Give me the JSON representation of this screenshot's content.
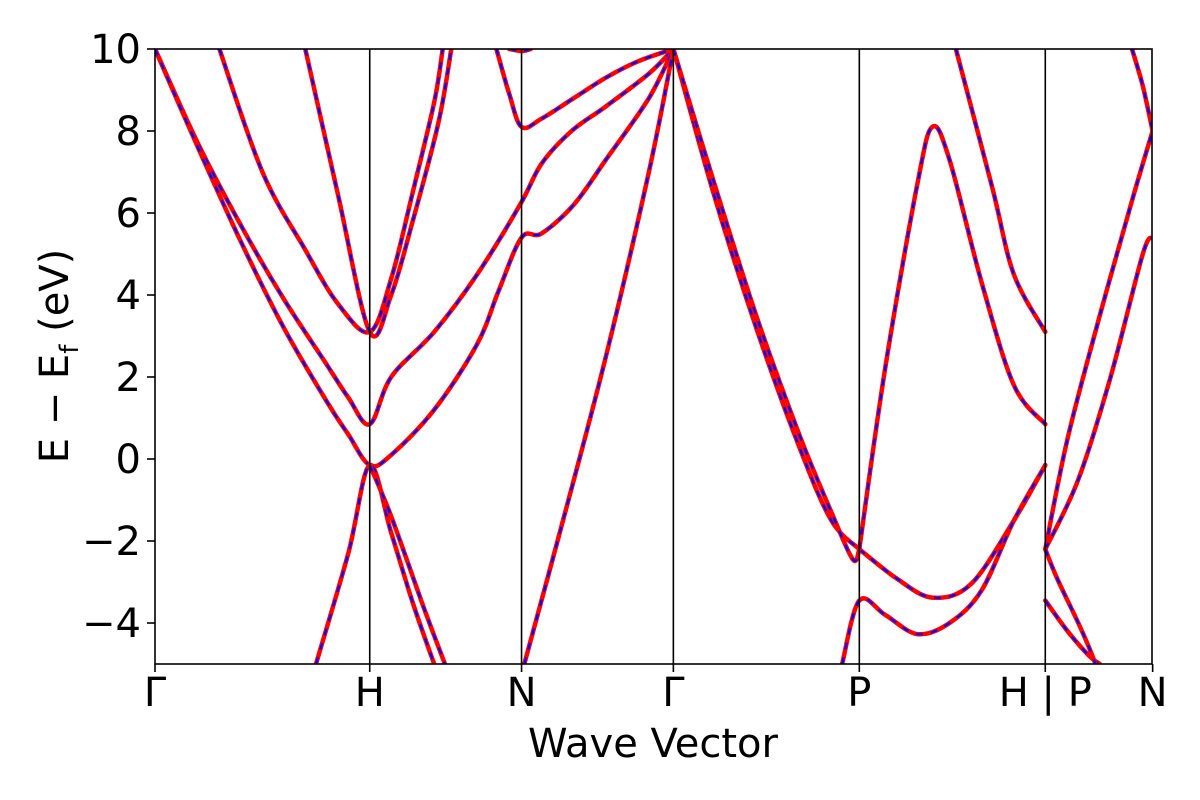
{
  "chart_data": {
    "type": "line",
    "title": "",
    "xlabel": "Wave Vector",
    "ylabel_main": "E − E",
    "ylabel_sub": "f",
    "ylabel_unit": " (eV)",
    "xlim": [
      0,
      4.643
    ],
    "ylim": [
      -5,
      10
    ],
    "yticks": [
      10,
      8,
      6,
      4,
      2,
      0,
      -2,
      -4
    ],
    "ytick_labels": [
      "10",
      "8",
      "6",
      "4",
      "2",
      "0",
      "−2",
      "−4"
    ],
    "kpoints": [
      {
        "label": "Γ",
        "x": 0.0
      },
      {
        "label": "H",
        "x": 1.0
      },
      {
        "label": "N",
        "x": 1.707
      },
      {
        "label": "Γ",
        "x": 2.414
      },
      {
        "label": "P",
        "x": 3.28
      },
      {
        "label": "H | P",
        "x": 4.146
      },
      {
        "label": "N",
        "x": 4.646
      }
    ],
    "style": {
      "series1_color": "#ff0000",
      "series2_color": "#0000ff",
      "series2_dashed": true,
      "grid": false,
      "legend": "none"
    },
    "bands": [
      {
        "name": "",
        "points": [
          [
            0,
            10
          ],
          [
            0.2,
            7.7
          ],
          [
            0.4,
            5.7
          ],
          [
            0.6,
            3.9
          ],
          [
            0.8,
            2.3
          ],
          [
            0.9,
            1.5
          ],
          [
            1.0,
            0.85
          ],
          [
            1.1,
            2.0
          ],
          [
            1.3,
            3.1
          ],
          [
            1.5,
            4.5
          ],
          [
            1.7,
            6.2
          ],
          [
            1.8,
            7.2
          ],
          [
            1.94,
            8.0
          ],
          [
            2.1,
            8.6
          ],
          [
            2.3,
            9.4
          ],
          [
            2.414,
            10
          ]
        ]
      },
      {
        "name": "",
        "points": [
          [
            0,
            10
          ],
          [
            0.2,
            7.6
          ],
          [
            0.4,
            5.3
          ],
          [
            0.6,
            3.2
          ],
          [
            0.8,
            1.4
          ],
          [
            0.9,
            0.6
          ],
          [
            1.0,
            -0.15
          ],
          [
            1.1,
            0.1
          ],
          [
            1.3,
            1.2
          ],
          [
            1.5,
            2.8
          ],
          [
            1.6,
            4.1
          ],
          [
            1.707,
            5.4
          ],
          [
            1.8,
            5.5
          ],
          [
            1.95,
            6.2
          ],
          [
            2.1,
            7.3
          ],
          [
            2.3,
            8.8
          ],
          [
            2.414,
            10
          ]
        ]
      },
      {
        "name": "",
        "points": [
          [
            0.3,
            10
          ],
          [
            0.5,
            7.0
          ],
          [
            0.7,
            5.1
          ],
          [
            0.85,
            3.8
          ],
          [
            1.0,
            3.1
          ],
          [
            1.1,
            4.4
          ],
          [
            1.2,
            6.5
          ],
          [
            1.3,
            8.7
          ],
          [
            1.34,
            10
          ]
        ]
      },
      {
        "name": "",
        "points": [
          [
            0.7,
            10
          ],
          [
            0.85,
            6.5
          ],
          [
            1.0,
            3.1
          ],
          [
            1.1,
            4.0
          ],
          [
            1.2,
            5.8
          ],
          [
            1.32,
            8.2
          ],
          [
            1.38,
            10
          ]
        ]
      },
      {
        "name": "",
        "points": [
          [
            1.59,
            10
          ],
          [
            1.65,
            8.9
          ],
          [
            1.707,
            8.1
          ],
          [
            1.8,
            8.3
          ],
          [
            1.95,
            8.8
          ],
          [
            2.1,
            9.3
          ],
          [
            2.25,
            9.7
          ],
          [
            2.414,
            10
          ]
        ]
      },
      {
        "name": "",
        "points": [
          [
            1.65,
            10
          ],
          [
            1.707,
            9.95
          ],
          [
            1.75,
            10
          ]
        ]
      },
      {
        "name": "",
        "points": [
          [
            0.75,
            -5
          ],
          [
            0.9,
            -2.3
          ],
          [
            1.0,
            -0.15
          ],
          [
            1.1,
            -1.8
          ],
          [
            1.2,
            -3.5
          ],
          [
            1.3,
            -5
          ]
        ]
      },
      {
        "name": "",
        "points": [
          [
            1.0,
            -0.15
          ],
          [
            1.1,
            -1.4
          ],
          [
            1.25,
            -3.6
          ],
          [
            1.35,
            -5
          ]
        ]
      },
      {
        "name": "",
        "points": [
          [
            1.72,
            -5
          ],
          [
            1.9,
            -1.5
          ],
          [
            2.1,
            2.5
          ],
          [
            2.3,
            7.0
          ],
          [
            2.414,
            10
          ]
        ]
      },
      {
        "name": "",
        "points": [
          [
            2.414,
            10
          ],
          [
            2.6,
            6.5
          ],
          [
            2.8,
            3.2
          ],
          [
            3.0,
            0.3
          ],
          [
            3.15,
            -1.5
          ],
          [
            3.28,
            -2.2
          ]
        ]
      },
      {
        "name": "",
        "points": [
          [
            2.414,
            10
          ],
          [
            2.6,
            6.8
          ],
          [
            2.8,
            3.5
          ],
          [
            3.0,
            0.6
          ],
          [
            3.15,
            -1.3
          ],
          [
            3.25,
            -2.45
          ],
          [
            3.28,
            -2.2
          ]
        ]
      },
      {
        "name": "",
        "points": [
          [
            3.28,
            -2.2
          ],
          [
            3.45,
            -2.9
          ],
          [
            3.62,
            -3.38
          ],
          [
            3.8,
            -3.05
          ],
          [
            4.0,
            -1.5
          ],
          [
            4.146,
            -0.15
          ]
        ]
      },
      {
        "name": "",
        "points": [
          [
            3.28,
            -2.2
          ],
          [
            3.4,
            2.2
          ],
          [
            3.55,
            6.7
          ],
          [
            3.62,
            8.1
          ],
          [
            3.7,
            7.3
          ],
          [
            3.85,
            4.3
          ],
          [
            4.0,
            1.8
          ],
          [
            4.146,
            0.85
          ]
        ]
      },
      {
        "name": "",
        "points": [
          [
            3.73,
            10
          ],
          [
            3.9,
            6.6
          ],
          [
            4.0,
            4.5
          ],
          [
            4.146,
            3.1
          ]
        ]
      },
      {
        "name": "",
        "points": [
          [
            3.2,
            -5
          ],
          [
            3.28,
            -3.45
          ],
          [
            3.4,
            -3.8
          ],
          [
            3.55,
            -4.27
          ],
          [
            3.7,
            -4.0
          ],
          [
            3.85,
            -3.2
          ],
          [
            4.0,
            -1.5
          ],
          [
            4.146,
            -0.15
          ]
        ]
      },
      {
        "name": "",
        "points": [
          [
            4.146,
            -2.2
          ],
          [
            4.25,
            0.5
          ],
          [
            4.4,
            3.5
          ],
          [
            4.55,
            6.3
          ],
          [
            4.646,
            8.0
          ]
        ]
      },
      {
        "name": "",
        "points": [
          [
            4.146,
            -2.2
          ],
          [
            4.3,
            -0.5
          ],
          [
            4.45,
            2.0
          ],
          [
            4.6,
            5.0
          ],
          [
            4.646,
            5.4
          ]
        ]
      },
      {
        "name": "",
        "points": [
          [
            4.146,
            -3.45
          ],
          [
            4.25,
            -4.2
          ],
          [
            4.35,
            -4.8
          ],
          [
            4.4,
            -5
          ]
        ]
      },
      {
        "name": "",
        "points": [
          [
            4.146,
            -2.2
          ],
          [
            4.2,
            -2.9
          ],
          [
            4.3,
            -4.0
          ],
          [
            4.35,
            -4.6
          ],
          [
            4.38,
            -5
          ]
        ]
      },
      {
        "name": "",
        "points": [
          [
            4.55,
            10
          ],
          [
            4.6,
            9.1
          ],
          [
            4.646,
            8.0
          ]
        ]
      }
    ]
  }
}
